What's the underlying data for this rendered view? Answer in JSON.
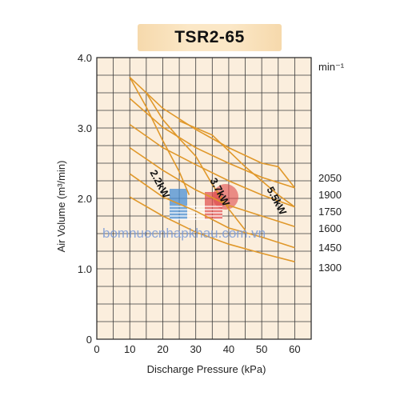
{
  "chart_data": {
    "type": "line",
    "title": "TSR2-65",
    "xlabel": "Discharge Pressure  (kPa)",
    "ylabel": "Air Volume (m³/min)",
    "xlim": [
      0,
      65
    ],
    "ylim": [
      0,
      4.0
    ],
    "x_ticks": [
      0,
      10,
      20,
      30,
      40,
      50,
      60
    ],
    "y_ticks": [
      0,
      1.0,
      2.0,
      3.0,
      4.0
    ],
    "y_tick_labels": [
      "0",
      "1.0",
      "2.0",
      "3.0",
      "4.0"
    ],
    "grid": true,
    "speed_unit": "min⁻¹",
    "series": [
      {
        "name": "2050",
        "points": [
          [
            10,
            3.72
          ],
          [
            20,
            3.28
          ],
          [
            30,
            2.98
          ],
          [
            40,
            2.72
          ],
          [
            50,
            2.5
          ],
          [
            55,
            2.45
          ],
          [
            60,
            2.15
          ]
        ]
      },
      {
        "name": "1900",
        "points": [
          [
            10,
            3.42
          ],
          [
            20,
            3.01
          ],
          [
            30,
            2.72
          ],
          [
            40,
            2.5
          ],
          [
            50,
            2.3
          ],
          [
            60,
            2.15
          ]
        ]
      },
      {
        "name": "1750",
        "points": [
          [
            10,
            3.05
          ],
          [
            20,
            2.72
          ],
          [
            30,
            2.48
          ],
          [
            40,
            2.25
          ],
          [
            50,
            2.05
          ],
          [
            60,
            1.88
          ]
        ]
      },
      {
        "name": "1600",
        "points": [
          [
            10,
            2.72
          ],
          [
            20,
            2.4
          ],
          [
            30,
            2.12
          ],
          [
            40,
            1.9
          ],
          [
            50,
            1.75
          ],
          [
            60,
            1.6
          ]
        ]
      },
      {
        "name": "1450",
        "points": [
          [
            10,
            2.35
          ],
          [
            20,
            2.02
          ],
          [
            30,
            1.82
          ],
          [
            40,
            1.58
          ],
          [
            50,
            1.45
          ],
          [
            60,
            1.3
          ]
        ]
      },
      {
        "name": "1300",
        "points": [
          [
            10,
            2.02
          ],
          [
            20,
            1.75
          ],
          [
            30,
            1.52
          ],
          [
            40,
            1.35
          ],
          [
            50,
            1.22
          ],
          [
            60,
            1.1
          ]
        ]
      }
    ],
    "power_lines": [
      {
        "name": "2.2kW",
        "points": [
          [
            10,
            3.72
          ],
          [
            15,
            3.3
          ],
          [
            20,
            2.82
          ],
          [
            25,
            2.38
          ],
          [
            28,
            2.05
          ]
        ]
      },
      {
        "name": "3.7kW",
        "points": [
          [
            15,
            3.5
          ],
          [
            20,
            3.12
          ],
          [
            25,
            2.85
          ],
          [
            30,
            2.6
          ],
          [
            35,
            2.2
          ],
          [
            40,
            1.85
          ],
          [
            45,
            1.55
          ]
        ]
      },
      {
        "name": "5.5kW",
        "points": [
          [
            25,
            3.1
          ],
          [
            35,
            2.9
          ],
          [
            45,
            2.45
          ],
          [
            55,
            2.05
          ],
          [
            60,
            1.88
          ]
        ]
      }
    ],
    "annotations": [
      "2.2kW",
      "3.7kW",
      "5.5kW"
    ]
  },
  "watermark": "bomnuocnhapkhau.com.vn",
  "logo": {
    "blue": "#4a8fd4",
    "red": "#e04a4a"
  }
}
